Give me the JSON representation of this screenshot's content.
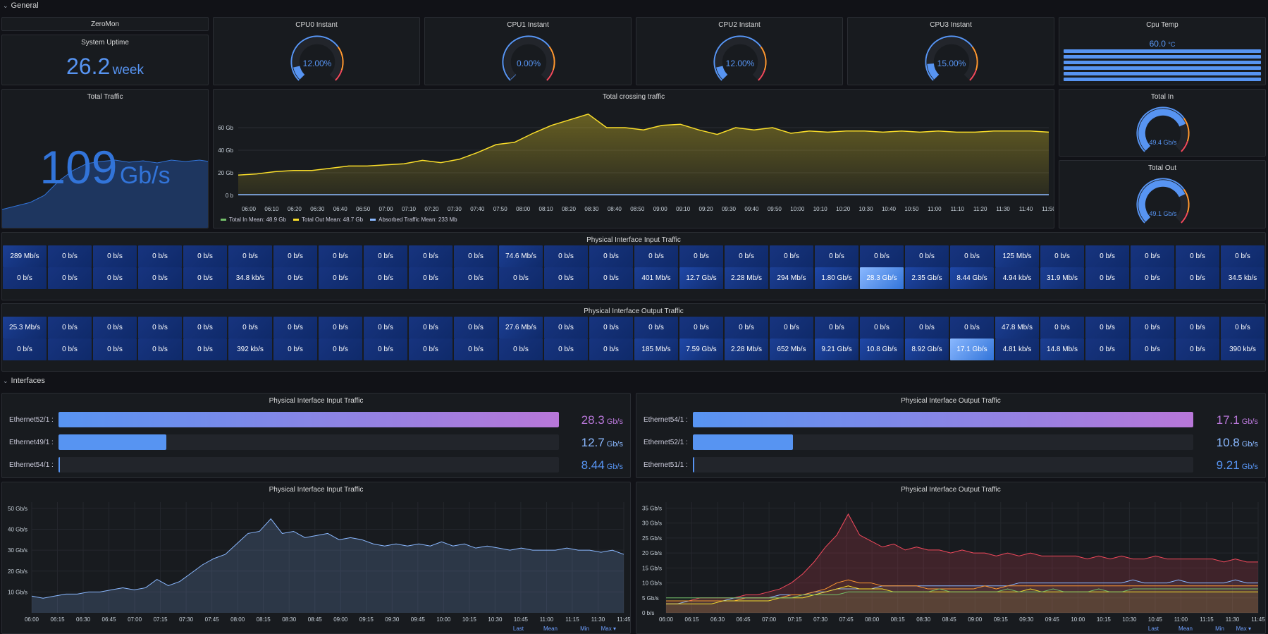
{
  "rows": {
    "general": "General",
    "interfaces": "Interfaces"
  },
  "zeromon": {
    "title": "ZeroMon"
  },
  "uptime": {
    "title": "System Uptime",
    "value": "26.2",
    "unit": "week"
  },
  "cpu_gauges": [
    {
      "title": "CPU0 Instant",
      "value": "12.00%",
      "level": 0.12
    },
    {
      "title": "CPU1 Instant",
      "value": "0.00%",
      "level": 0.0
    },
    {
      "title": "CPU2 Instant",
      "value": "12.00%",
      "level": 0.12
    },
    {
      "title": "CPU3 Instant",
      "value": "15.00%",
      "level": 0.15
    }
  ],
  "cpu_temp": {
    "title": "Cpu Temp",
    "value": "60.0",
    "unit": "°C"
  },
  "total_traffic": {
    "title": "Total Traffic",
    "value": "109",
    "unit": "Gb/s"
  },
  "crossing": {
    "title": "Total crossing traffic",
    "legend": [
      {
        "name": "Total In",
        "stat": "Mean: 48.9 Gb",
        "color": "#73bf69"
      },
      {
        "name": "Total Out",
        "stat": "Mean: 48.7 Gb",
        "color": "#fade2a"
      },
      {
        "name": "Absorbed Traffic",
        "stat": "Mean: 233 Mb",
        "color": "#8ab8ff"
      }
    ],
    "yticks": [
      "0 b",
      "20 Gb",
      "40 Gb",
      "60 Gb"
    ],
    "xticks": [
      "06:00",
      "06:10",
      "06:20",
      "06:30",
      "06:40",
      "06:50",
      "07:00",
      "07:10",
      "07:20",
      "07:30",
      "07:40",
      "07:50",
      "08:00",
      "08:10",
      "08:20",
      "08:30",
      "08:40",
      "08:50",
      "09:00",
      "09:10",
      "09:20",
      "09:30",
      "09:40",
      "09:50",
      "10:00",
      "10:10",
      "10:20",
      "10:30",
      "10:40",
      "10:50",
      "11:00",
      "11:10",
      "11:20",
      "11:30",
      "11:40",
      "11:50"
    ],
    "out_values": [
      18,
      19,
      21,
      22,
      22,
      24,
      26,
      26,
      27,
      28,
      31,
      29,
      32,
      38,
      45,
      47,
      55,
      62,
      67,
      72,
      60,
      60,
      58,
      62,
      63,
      58,
      54,
      60,
      58,
      60,
      55,
      57,
      56,
      57,
      57,
      56,
      57,
      56,
      57,
      56,
      56,
      57,
      57,
      57,
      56
    ]
  },
  "total_in": {
    "title": "Total In",
    "value": "49.4 Gb/s",
    "level": 0.75
  },
  "total_out": {
    "title": "Total Out",
    "value": "49.1 Gb/s",
    "level": 0.74
  },
  "phys_in_grid": {
    "title": "Physical Interface Input Traffic",
    "row1": [
      "289 Mb/s",
      "0 b/s",
      "0 b/s",
      "0 b/s",
      "0 b/s",
      "0 b/s",
      "0 b/s",
      "0 b/s",
      "0 b/s",
      "0 b/s",
      "0 b/s",
      "74.6 Mb/s",
      "0 b/s",
      "0 b/s",
      "0 b/s",
      "0 b/s",
      "0 b/s",
      "0 b/s",
      "0 b/s",
      "0 b/s",
      "0 b/s",
      "0 b/s",
      "125 Mb/s",
      "0 b/s",
      "0 b/s",
      "0 b/s",
      "0 b/s",
      "0 b/s"
    ],
    "row2": [
      "0 b/s",
      "0 b/s",
      "0 b/s",
      "0 b/s",
      "0 b/s",
      "34.8 kb/s",
      "0 b/s",
      "0 b/s",
      "0 b/s",
      "0 b/s",
      "0 b/s",
      "0 b/s",
      "0 b/s",
      "0 b/s",
      "401 Mb/s",
      "12.7 Gb/s",
      "2.28 Mb/s",
      "294 Mb/s",
      "1.80 Gb/s",
      "28.3 Gb/s",
      "2.35 Gb/s",
      "8.44 Gb/s",
      "4.94 kb/s",
      "31.9 Mb/s",
      "0 b/s",
      "0 b/s",
      "0 b/s",
      "34.5 kb/s"
    ],
    "highlight_row2": 19
  },
  "phys_out_grid": {
    "title": "Physical Interface Output Traffic",
    "row1": [
      "25.3 Mb/s",
      "0 b/s",
      "0 b/s",
      "0 b/s",
      "0 b/s",
      "0 b/s",
      "0 b/s",
      "0 b/s",
      "0 b/s",
      "0 b/s",
      "0 b/s",
      "27.6 Mb/s",
      "0 b/s",
      "0 b/s",
      "0 b/s",
      "0 b/s",
      "0 b/s",
      "0 b/s",
      "0 b/s",
      "0 b/s",
      "0 b/s",
      "0 b/s",
      "47.8 Mb/s",
      "0 b/s",
      "0 b/s",
      "0 b/s",
      "0 b/s",
      "0 b/s"
    ],
    "row2": [
      "0 b/s",
      "0 b/s",
      "0 b/s",
      "0 b/s",
      "0 b/s",
      "392 kb/s",
      "0 b/s",
      "0 b/s",
      "0 b/s",
      "0 b/s",
      "0 b/s",
      "0 b/s",
      "0 b/s",
      "0 b/s",
      "185 Mb/s",
      "7.59 Gb/s",
      "2.28 Mb/s",
      "652 Mb/s",
      "9.21 Gb/s",
      "10.8 Gb/s",
      "8.92 Gb/s",
      "17.1 Gb/s",
      "4.81 kb/s",
      "14.8 Mb/s",
      "0 b/s",
      "0 b/s",
      "0 b/s",
      "390 kb/s"
    ],
    "highlight_row2": 21
  },
  "bargauge_in": {
    "title": "Physical Interface Input Traffic",
    "items": [
      {
        "label": "Ethernet52/1 :",
        "value": "28.3",
        "unit": "Gb/s",
        "fraction": 1.0,
        "color": "#b877d9"
      },
      {
        "label": "Ethernet49/1 :",
        "value": "12.7",
        "unit": "Gb/s",
        "fraction": 0.215,
        "color": "#8ab8ff"
      },
      {
        "label": "Ethernet54/1 :",
        "value": "8.44",
        "unit": "Gb/s",
        "fraction": 0.003,
        "color": "#5794f2"
      }
    ]
  },
  "bargauge_out": {
    "title": "Physical Interface Output Traffic",
    "items": [
      {
        "label": "Ethernet54/1 :",
        "value": "17.1",
        "unit": "Gb/s",
        "fraction": 1.0,
        "color": "#b877d9"
      },
      {
        "label": "Ethernet52/1 :",
        "value": "10.8",
        "unit": "Gb/s",
        "fraction": 0.2,
        "color": "#8ab8ff"
      },
      {
        "label": "Ethernet51/1 :",
        "value": "9.21",
        "unit": "Gb/s",
        "fraction": 0.003,
        "color": "#5794f2"
      }
    ]
  },
  "ts_in": {
    "title": "Physical Interface Input Traffic",
    "yticks": [
      "10 Gb/s",
      "20 Gb/s",
      "30 Gb/s",
      "40 Gb/s",
      "50 Gb/s"
    ],
    "xticks": [
      "06:00",
      "06:15",
      "06:30",
      "06:45",
      "07:00",
      "07:15",
      "07:30",
      "07:45",
      "08:00",
      "08:15",
      "08:30",
      "08:45",
      "09:00",
      "09:15",
      "09:30",
      "09:45",
      "10:00",
      "10:15",
      "10:30",
      "10:45",
      "11:00",
      "11:15",
      "11:30",
      "11:45"
    ],
    "legend_cols": [
      "Last",
      "Mean",
      "Min",
      "Max ▾"
    ],
    "values": [
      8,
      7,
      8,
      9,
      9,
      10,
      10,
      11,
      12,
      11,
      12,
      16,
      13,
      15,
      19,
      23,
      26,
      28,
      33,
      38,
      39,
      45,
      38,
      39,
      36,
      37,
      38,
      35,
      36,
      35,
      33,
      32,
      33,
      32,
      33,
      32,
      34,
      32,
      33,
      31,
      32,
      31,
      30,
      31,
      30,
      30,
      30,
      31,
      30,
      30,
      29,
      30,
      28
    ]
  },
  "ts_out": {
    "title": "Physical Interface Output Traffic",
    "yticks": [
      "0 b/s",
      "5 Gb/s",
      "10 Gb/s",
      "15 Gb/s",
      "20 Gb/s",
      "25 Gb/s",
      "30 Gb/s",
      "35 Gb/s"
    ],
    "xticks": [
      "06:00",
      "06:15",
      "06:30",
      "06:45",
      "07:00",
      "07:15",
      "07:30",
      "07:45",
      "08:00",
      "08:15",
      "08:30",
      "08:45",
      "09:00",
      "09:15",
      "09:30",
      "09:45",
      "10:00",
      "10:15",
      "10:30",
      "10:45",
      "11:00",
      "11:15",
      "11:30",
      "11:45"
    ],
    "legend_cols": [
      "Last",
      "Mean",
      "Min",
      "Max ▾"
    ],
    "series": [
      {
        "color": "#f2495c",
        "values": [
          4,
          4,
          4,
          5,
          5,
          5,
          5,
          6,
          6,
          7,
          8,
          10,
          13,
          17,
          22,
          26,
          33,
          26,
          24,
          22,
          23,
          21,
          22,
          21,
          21,
          20,
          21,
          20,
          20,
          19,
          20,
          19,
          20,
          19,
          19,
          19,
          19,
          18,
          19,
          18,
          19,
          18,
          18,
          19,
          18,
          18,
          18,
          18,
          18,
          17,
          18,
          17,
          17
        ]
      },
      {
        "color": "#8ab8ff",
        "values": [
          3,
          3,
          4,
          4,
          4,
          4,
          5,
          5,
          5,
          5,
          6,
          6,
          6,
          7,
          7,
          8,
          8,
          8,
          8,
          9,
          9,
          9,
          9,
          9,
          9,
          9,
          9,
          9,
          9,
          9,
          9,
          10,
          10,
          10,
          10,
          10,
          10,
          10,
          10,
          10,
          10,
          11,
          10,
          10,
          10,
          11,
          10,
          10,
          10,
          10,
          11,
          10,
          10
        ]
      },
      {
        "color": "#ff9830",
        "values": [
          4,
          4,
          4,
          4,
          4,
          4,
          4,
          5,
          5,
          5,
          5,
          6,
          6,
          7,
          8,
          10,
          11,
          10,
          10,
          9,
          9,
          9,
          9,
          8,
          8,
          8,
          8,
          8,
          9,
          8,
          9,
          9,
          9,
          9,
          9,
          9,
          9,
          9,
          9,
          9,
          9,
          9,
          9,
          9,
          9,
          9,
          9,
          9,
          9,
          9,
          9,
          9,
          9
        ]
      },
      {
        "color": "#fade2a",
        "values": [
          3,
          3,
          3,
          3,
          3,
          4,
          4,
          4,
          4,
          4,
          5,
          5,
          5,
          6,
          7,
          8,
          9,
          8,
          8,
          8,
          7,
          7,
          7,
          7,
          7,
          7,
          7,
          7,
          7,
          7,
          7,
          7,
          8,
          7,
          7,
          7,
          7,
          7,
          7,
          7,
          7,
          7,
          7,
          7,
          7,
          7,
          7,
          7,
          7,
          7,
          7,
          7,
          7
        ]
      },
      {
        "color": "#73bf69",
        "values": [
          5,
          5,
          5,
          5,
          5,
          5,
          5,
          5,
          5,
          5,
          5,
          5,
          6,
          6,
          6,
          6,
          7,
          7,
          7,
          7,
          7,
          7,
          7,
          7,
          8,
          7,
          7,
          7,
          7,
          7,
          8,
          7,
          7,
          7,
          8,
          7,
          7,
          7,
          8,
          7,
          7,
          8,
          8,
          8,
          8,
          8,
          8,
          8,
          8,
          8,
          8,
          8,
          8
        ]
      }
    ]
  }
}
